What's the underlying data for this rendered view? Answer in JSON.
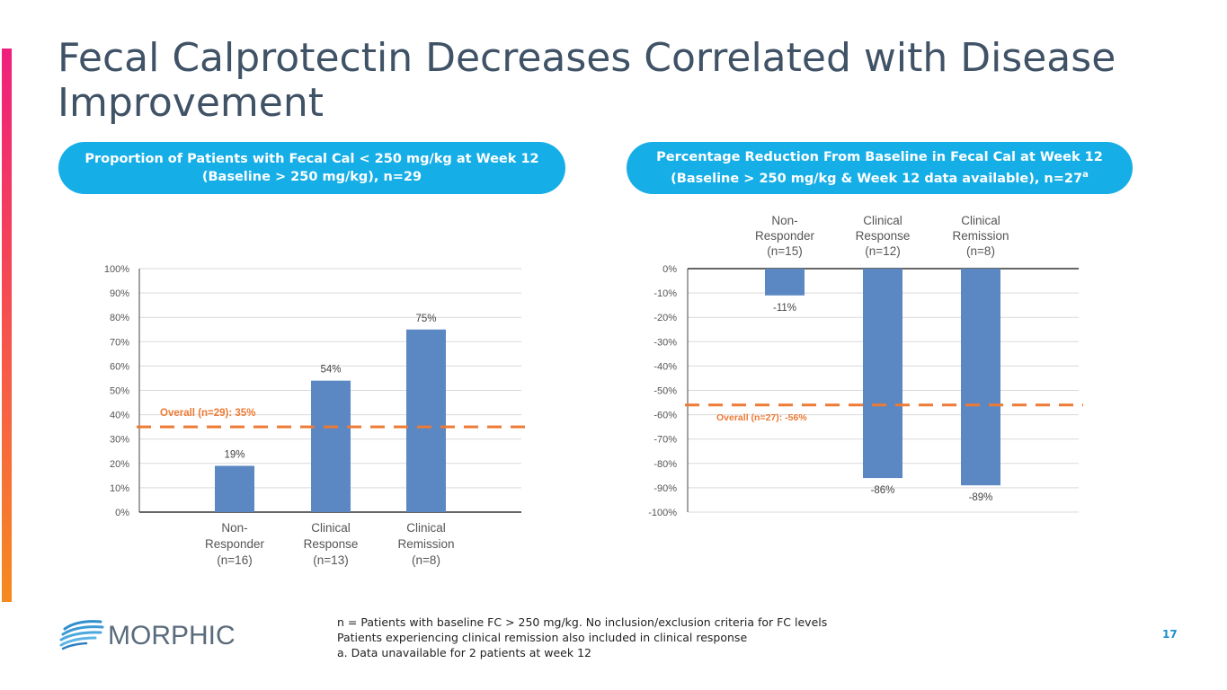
{
  "slide": {
    "title": "Fecal Calprotectin Decreases Correlated with Disease Improvement",
    "page_number": "17",
    "brand": "MORPHIC",
    "footnotes": [
      "n = Patients with baseline FC > 250 mg/kg. No inclusion/exclusion criteria for FC levels",
      "Patients experiencing clinical remission also included in clinical response",
      "a. Data unavailable for 2 patients at week 12"
    ],
    "left_header": {
      "line1": "Proportion of Patients with Fecal Cal < 250 mg/kg at Week 12",
      "line2": "(Baseline > 250 mg/kg), n=29"
    },
    "right_header": {
      "line1": "Percentage Reduction From Baseline in Fecal Cal at Week 12",
      "line2": "(Baseline > 250 mg/kg & Week 12 data available), n=27",
      "superscript": "a"
    }
  },
  "colors": {
    "bar": "#5b88c2",
    "reference_line": "#ed7a35",
    "pill": "#15aee7",
    "title": "#3f5266",
    "grid": "#d9d9d9"
  },
  "chart_data": [
    {
      "type": "bar",
      "categories": [
        [
          "Non-",
          "Responder",
          "(n=16)"
        ],
        [
          "Clinical",
          "Response",
          "(n=13)"
        ],
        [
          "Clinical",
          "Remission",
          "(n=8)"
        ]
      ],
      "values": [
        19,
        54,
        75
      ],
      "value_labels": [
        "19%",
        "54%",
        "75%"
      ],
      "ylim": [
        0,
        100
      ],
      "yticks": [
        0,
        10,
        20,
        30,
        40,
        50,
        60,
        70,
        80,
        90,
        100
      ],
      "ytick_labels": [
        "0%",
        "10%",
        "20%",
        "30%",
        "40%",
        "50%",
        "60%",
        "70%",
        "80%",
        "90%",
        "100%"
      ],
      "category_axis": "bottom",
      "reference": {
        "value": 35,
        "label": "Overall (n=29): 35%"
      }
    },
    {
      "type": "bar",
      "categories": [
        [
          "Non-",
          "Responder",
          "(n=15)"
        ],
        [
          "Clinical",
          "Response",
          "(n=12)"
        ],
        [
          "Clinical",
          "Remission",
          "(n=8)"
        ]
      ],
      "values": [
        -11,
        -86,
        -89
      ],
      "value_labels": [
        "-11%",
        "-86%",
        "-89%"
      ],
      "ylim": [
        -100,
        0
      ],
      "yticks": [
        0,
        -10,
        -20,
        -30,
        -40,
        -50,
        -60,
        -70,
        -80,
        -90,
        -100
      ],
      "ytick_labels": [
        "0%",
        "-10%",
        "-20%",
        "-30%",
        "-40%",
        "-50%",
        "-60%",
        "-70%",
        "-80%",
        "-90%",
        "-100%"
      ],
      "category_axis": "top",
      "reference": {
        "value": -56,
        "label": "Overall (n=27): -56%"
      }
    }
  ]
}
